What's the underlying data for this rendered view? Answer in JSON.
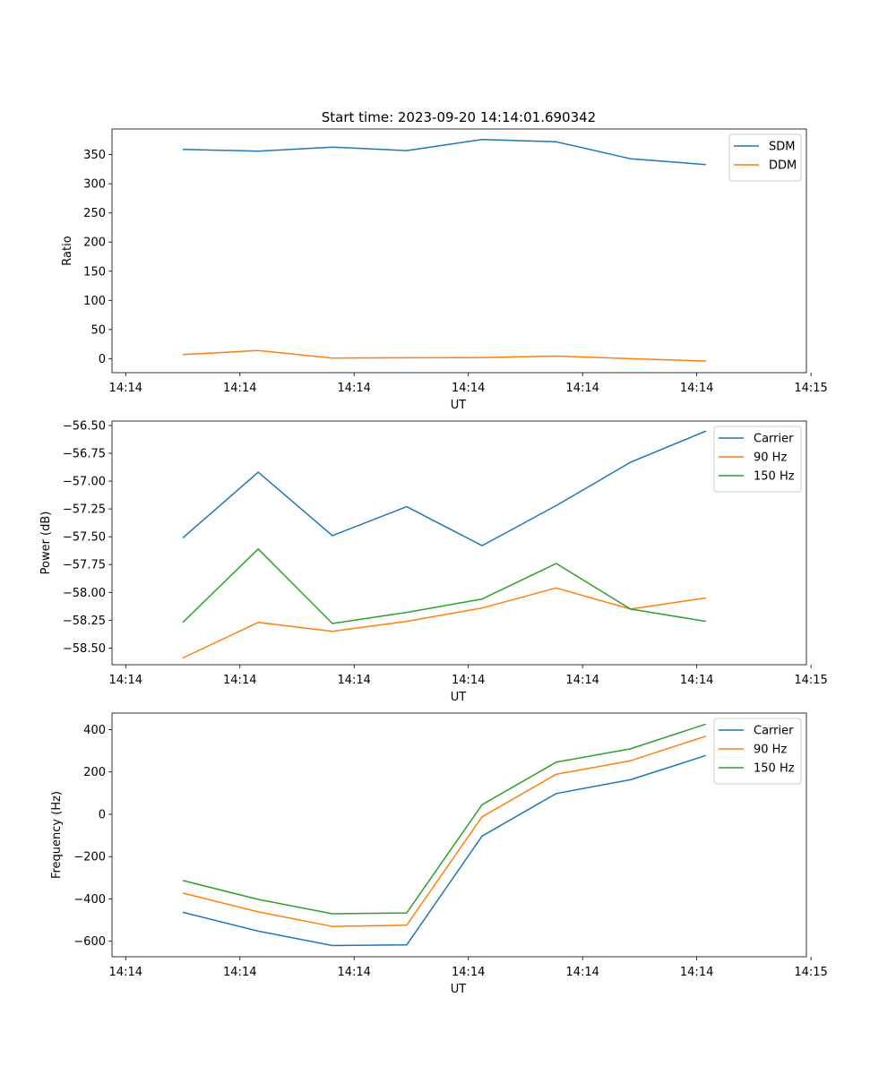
{
  "figure_title": "Start time: 2023-09-20 14:14:01.690342",
  "colors": {
    "blue": "#1f77b4",
    "orange": "#ff7f0e",
    "green": "#2ca02c"
  },
  "chart_data": [
    {
      "type": "line",
      "xlabel": "UT",
      "ylabel": "Ratio",
      "x_tick_labels": [
        "14:14",
        "14:14",
        "14:14",
        "14:14",
        "14:14",
        "14:14",
        "14:15"
      ],
      "x_tick_positions": [
        0,
        1,
        2,
        3,
        4,
        5,
        6
      ],
      "xlim": [
        -0.12,
        5.96
      ],
      "x": [
        0.5,
        1.16,
        1.81,
        2.46,
        3.12,
        3.77,
        4.42,
        5.08
      ],
      "ylim": [
        -24,
        394
      ],
      "y_ticks": [
        0,
        50,
        100,
        150,
        200,
        250,
        300,
        350
      ],
      "y_tick_labels": [
        "0",
        "50",
        "100",
        "150",
        "200",
        "250",
        "300",
        "350"
      ],
      "legend_position": "top-right",
      "series": [
        {
          "name": "SDM",
          "color": "#1f77b4",
          "values": [
            359,
            356,
            363,
            357,
            376,
            372,
            343,
            333
          ]
        },
        {
          "name": "DDM",
          "color": "#ff7f0e",
          "values": [
            7,
            14,
            1,
            1.5,
            2,
            4.5,
            0,
            -4
          ]
        }
      ]
    },
    {
      "type": "line",
      "xlabel": "UT",
      "ylabel": "Power (dB)",
      "x_tick_labels": [
        "14:14",
        "14:14",
        "14:14",
        "14:14",
        "14:14",
        "14:14",
        "14:15"
      ],
      "x_tick_positions": [
        0,
        1,
        2,
        3,
        4,
        5,
        6
      ],
      "xlim": [
        -0.12,
        5.96
      ],
      "x": [
        0.5,
        1.16,
        1.81,
        2.46,
        3.12,
        3.77,
        4.42,
        5.08
      ],
      "ylim": [
        -58.65,
        -56.46
      ],
      "y_ticks": [
        -58.5,
        -58.25,
        -58.0,
        -57.75,
        -57.5,
        -57.25,
        -57.0,
        -56.75,
        -56.5
      ],
      "y_tick_labels": [
        "−58.50",
        "−58.25",
        "−58.00",
        "−57.75",
        "−57.50",
        "−57.25",
        "−57.00",
        "−56.75",
        "−56.50"
      ],
      "legend_position": "top-right",
      "series": [
        {
          "name": "Carrier",
          "color": "#1f77b4",
          "values": [
            -57.51,
            -56.92,
            -57.49,
            -57.23,
            -57.58,
            -57.22,
            -56.83,
            -56.55
          ]
        },
        {
          "name": "90 Hz",
          "color": "#ff7f0e",
          "values": [
            -58.59,
            -58.27,
            -58.35,
            -58.26,
            -58.14,
            -57.96,
            -58.15,
            -58.05
          ]
        },
        {
          "name": "150 Hz",
          "color": "#2ca02c",
          "values": [
            -58.27,
            -57.61,
            -58.28,
            -58.18,
            -58.06,
            -57.74,
            -58.15,
            -58.26
          ]
        }
      ]
    },
    {
      "type": "line",
      "xlabel": "UT",
      "ylabel": "Frequency (Hz)",
      "x_tick_labels": [
        "14:14",
        "14:14",
        "14:14",
        "14:14",
        "14:14",
        "14:14",
        "14:15"
      ],
      "x_tick_positions": [
        0,
        1,
        2,
        3,
        4,
        5,
        6
      ],
      "xlim": [
        -0.12,
        5.96
      ],
      "x": [
        0.5,
        1.16,
        1.81,
        2.46,
        3.12,
        3.77,
        4.42,
        5.08
      ],
      "ylim": [
        -673,
        478
      ],
      "y_ticks": [
        -600,
        -400,
        -200,
        0,
        200,
        400
      ],
      "y_tick_labels": [
        "−600",
        "−400",
        "−200",
        "0",
        "200",
        "400"
      ],
      "legend_position": "top-right",
      "series": [
        {
          "name": "Carrier",
          "color": "#1f77b4",
          "values": [
            -463,
            -552,
            -620,
            -617,
            -103,
            98,
            163,
            278
          ]
        },
        {
          "name": "90 Hz",
          "color": "#ff7f0e",
          "values": [
            -372,
            -461,
            -530,
            -524,
            -12,
            189,
            253,
            369
          ]
        },
        {
          "name": "150 Hz",
          "color": "#2ca02c",
          "values": [
            -313,
            -402,
            -470,
            -466,
            45,
            246,
            309,
            426
          ]
        }
      ]
    }
  ]
}
